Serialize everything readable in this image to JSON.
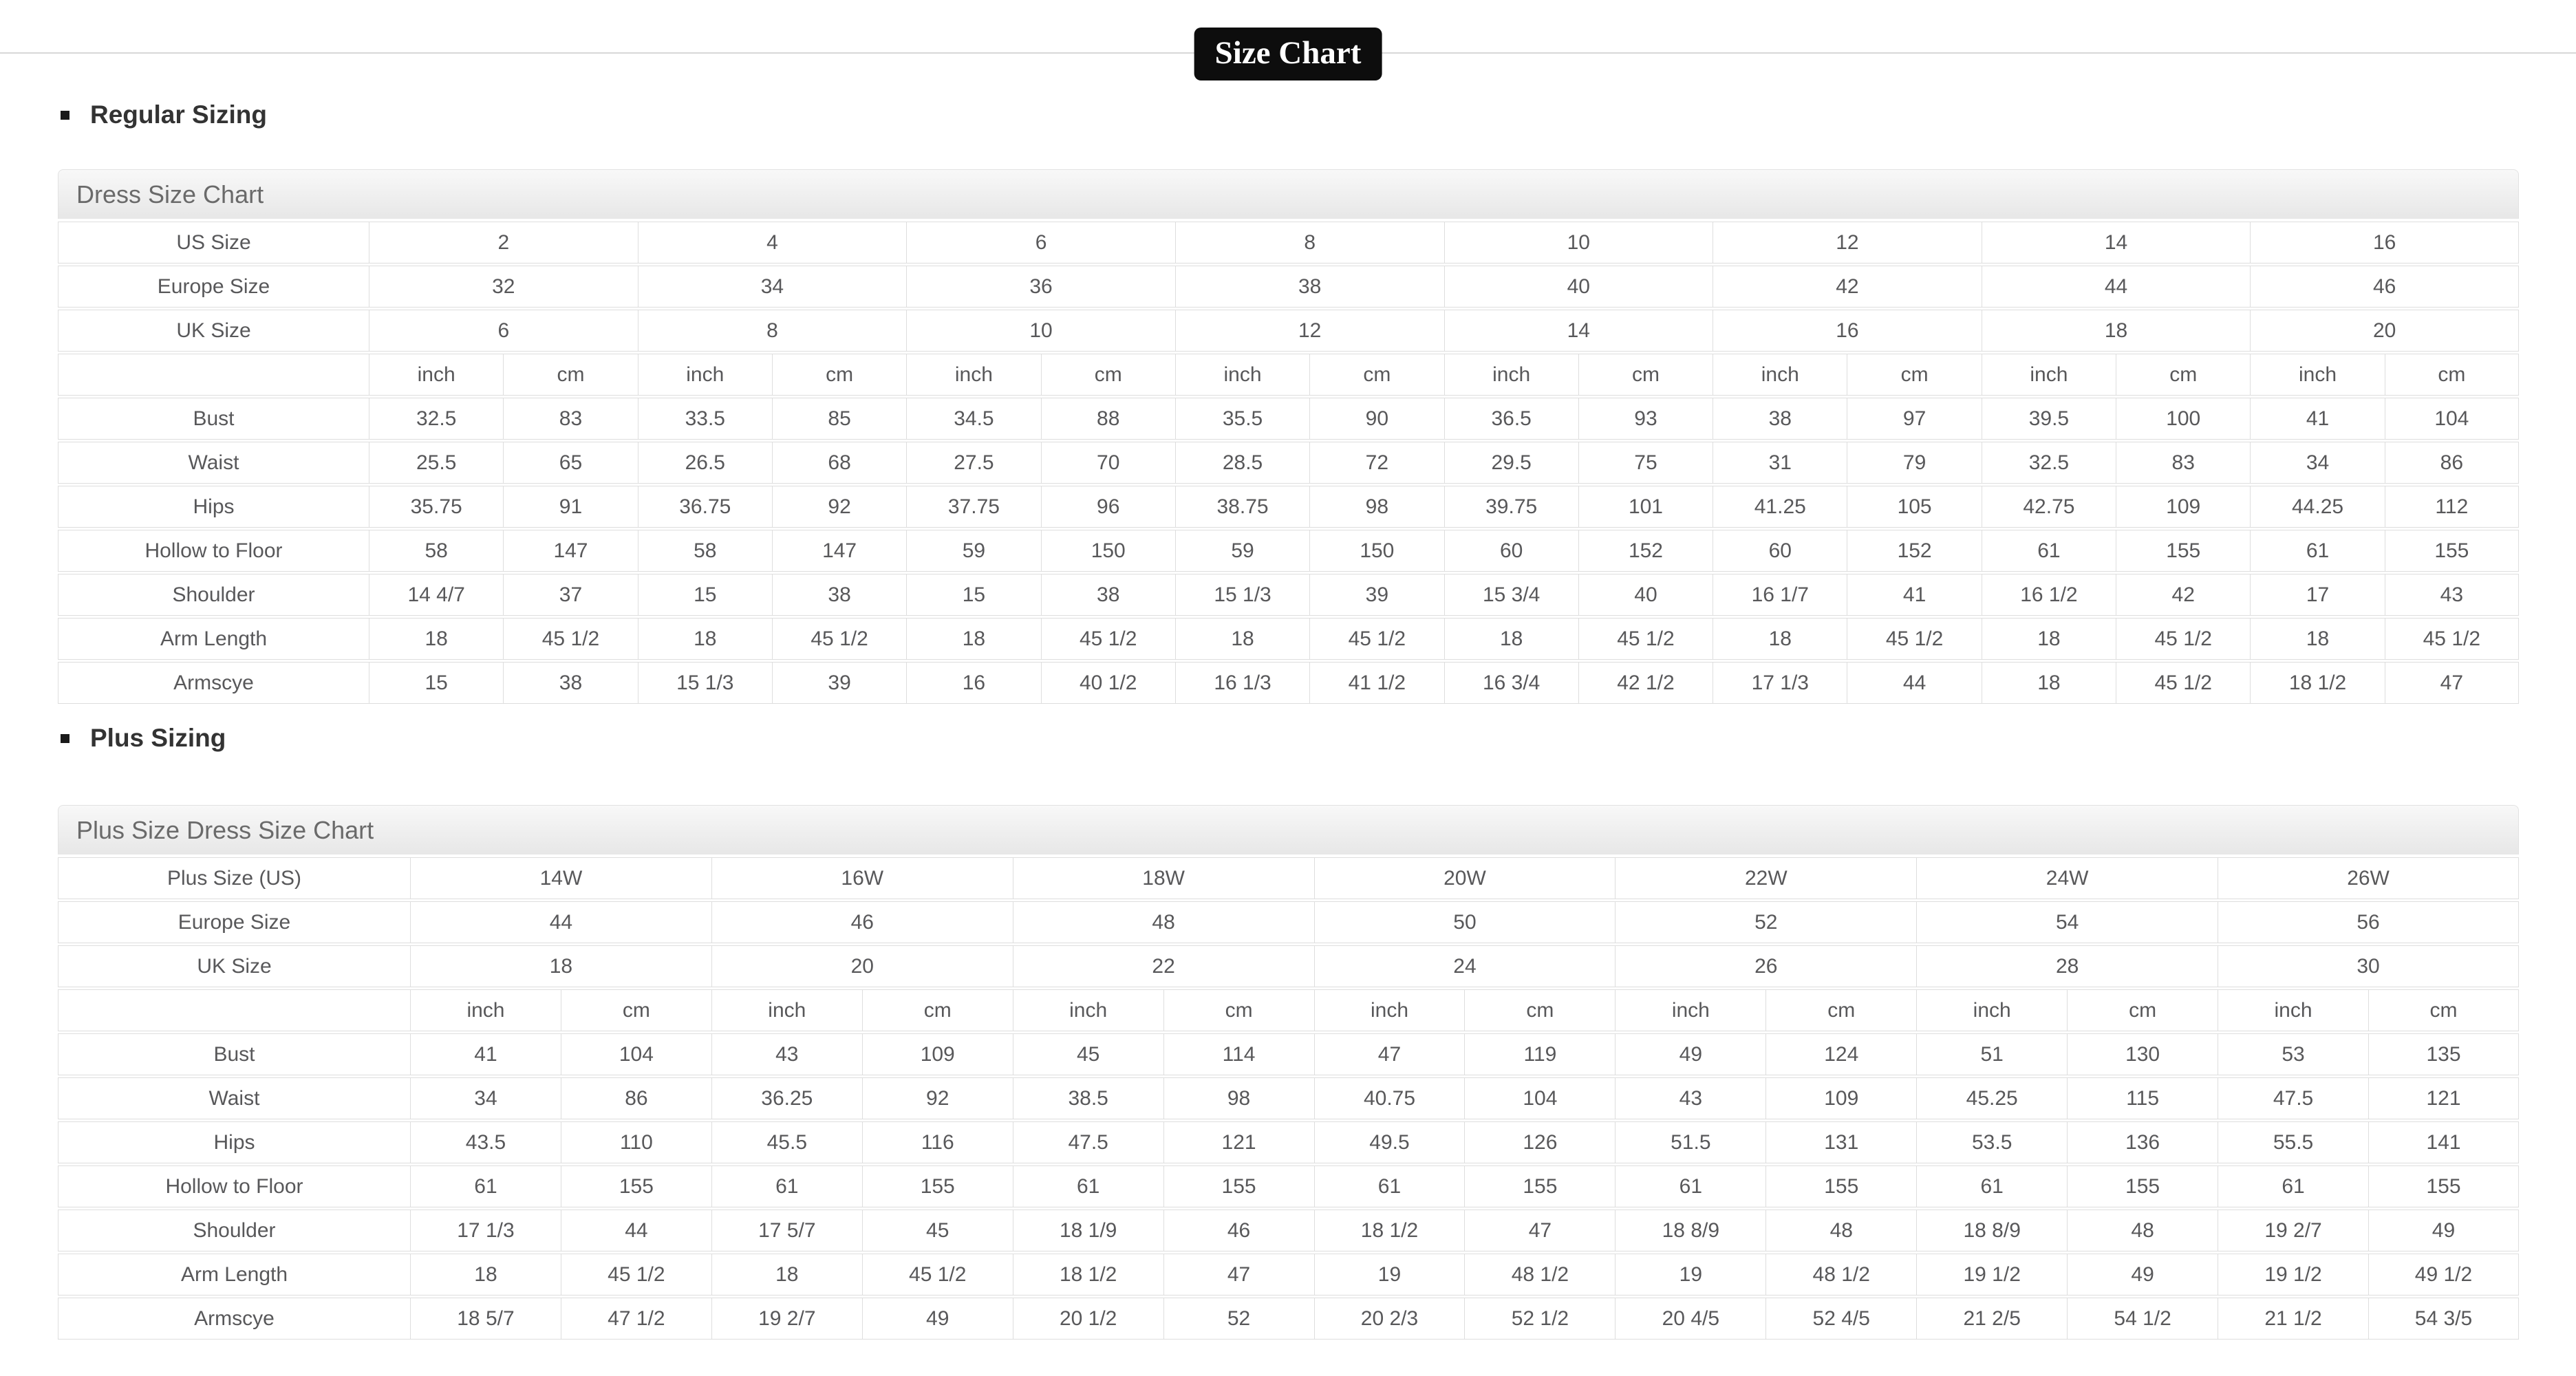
{
  "page": {
    "title": "Size Chart"
  },
  "colors": {
    "badge_bg": "#0d0d0d",
    "badge_text": "#ffffff",
    "border": "#dedede",
    "text": "#58585a"
  },
  "sections": [
    {
      "heading": "Regular Sizing",
      "table_title": "Dress Size Chart",
      "units": [
        "inch",
        "cm"
      ],
      "size_rows": [
        {
          "label": "US Size",
          "values": [
            "2",
            "4",
            "6",
            "8",
            "10",
            "12",
            "14",
            "16"
          ]
        },
        {
          "label": "Europe Size",
          "values": [
            "32",
            "34",
            "36",
            "38",
            "40",
            "42",
            "44",
            "46"
          ]
        },
        {
          "label": "UK Size",
          "values": [
            "6",
            "8",
            "10",
            "12",
            "14",
            "16",
            "18",
            "20"
          ]
        }
      ],
      "measure_rows": [
        {
          "label": "Bust",
          "values": [
            "32.5",
            "83",
            "33.5",
            "85",
            "34.5",
            "88",
            "35.5",
            "90",
            "36.5",
            "93",
            "38",
            "97",
            "39.5",
            "100",
            "41",
            "104"
          ]
        },
        {
          "label": "Waist",
          "values": [
            "25.5",
            "65",
            "26.5",
            "68",
            "27.5",
            "70",
            "28.5",
            "72",
            "29.5",
            "75",
            "31",
            "79",
            "32.5",
            "83",
            "34",
            "86"
          ]
        },
        {
          "label": "Hips",
          "values": [
            "35.75",
            "91",
            "36.75",
            "92",
            "37.75",
            "96",
            "38.75",
            "98",
            "39.75",
            "101",
            "41.25",
            "105",
            "42.75",
            "109",
            "44.25",
            "112"
          ]
        },
        {
          "label": "Hollow to Floor",
          "values": [
            "58",
            "147",
            "58",
            "147",
            "59",
            "150",
            "59",
            "150",
            "60",
            "152",
            "60",
            "152",
            "61",
            "155",
            "61",
            "155"
          ]
        },
        {
          "label": "Shoulder",
          "values": [
            "14 4/7",
            "37",
            "15",
            "38",
            "15",
            "38",
            "15 1/3",
            "39",
            "15 3/4",
            "40",
            "16 1/7",
            "41",
            "16 1/2",
            "42",
            "17",
            "43"
          ]
        },
        {
          "label": "Arm Length",
          "values": [
            "18",
            "45 1/2",
            "18",
            "45 1/2",
            "18",
            "45 1/2",
            "18",
            "45 1/2",
            "18",
            "45 1/2",
            "18",
            "45 1/2",
            "18",
            "45 1/2",
            "18",
            "45 1/2"
          ]
        },
        {
          "label": "Armscye",
          "values": [
            "15",
            "38",
            "15 1/3",
            "39",
            "16",
            "40 1/2",
            "16 1/3",
            "41 1/2",
            "16 3/4",
            "42 1/2",
            "17 1/3",
            "44",
            "18",
            "45 1/2",
            "18 1/2",
            "47"
          ]
        }
      ]
    },
    {
      "heading": "Plus Sizing",
      "table_title": "Plus Size Dress Size Chart",
      "units": [
        "inch",
        "cm"
      ],
      "size_rows": [
        {
          "label": "Plus Size (US)",
          "values": [
            "14W",
            "16W",
            "18W",
            "20W",
            "22W",
            "24W",
            "26W"
          ]
        },
        {
          "label": "Europe Size",
          "values": [
            "44",
            "46",
            "48",
            "50",
            "52",
            "54",
            "56"
          ]
        },
        {
          "label": "UK Size",
          "values": [
            "18",
            "20",
            "22",
            "24",
            "26",
            "28",
            "30"
          ]
        }
      ],
      "measure_rows": [
        {
          "label": "Bust",
          "values": [
            "41",
            "104",
            "43",
            "109",
            "45",
            "114",
            "47",
            "119",
            "49",
            "124",
            "51",
            "130",
            "53",
            "135"
          ]
        },
        {
          "label": "Waist",
          "values": [
            "34",
            "86",
            "36.25",
            "92",
            "38.5",
            "98",
            "40.75",
            "104",
            "43",
            "109",
            "45.25",
            "115",
            "47.5",
            "121"
          ]
        },
        {
          "label": "Hips",
          "values": [
            "43.5",
            "110",
            "45.5",
            "116",
            "47.5",
            "121",
            "49.5",
            "126",
            "51.5",
            "131",
            "53.5",
            "136",
            "55.5",
            "141"
          ]
        },
        {
          "label": "Hollow to Floor",
          "values": [
            "61",
            "155",
            "61",
            "155",
            "61",
            "155",
            "61",
            "155",
            "61",
            "155",
            "61",
            "155",
            "61",
            "155"
          ]
        },
        {
          "label": "Shoulder",
          "values": [
            "17 1/3",
            "44",
            "17 5/7",
            "45",
            "18 1/9",
            "46",
            "18 1/2",
            "47",
            "18 8/9",
            "48",
            "18 8/9",
            "48",
            "19 2/7",
            "49"
          ]
        },
        {
          "label": "Arm Length",
          "values": [
            "18",
            "45 1/2",
            "18",
            "45 1/2",
            "18 1/2",
            "47",
            "19",
            "48 1/2",
            "19",
            "48 1/2",
            "19 1/2",
            "49",
            "19 1/2",
            "49 1/2"
          ]
        },
        {
          "label": "Armscye",
          "values": [
            "18 5/7",
            "47 1/2",
            "19 2/7",
            "49",
            "20 1/2",
            "52",
            "20 2/3",
            "52 1/2",
            "20 4/5",
            "52 4/5",
            "21 2/5",
            "54 1/2",
            "21 1/2",
            "54 3/5"
          ]
        }
      ]
    }
  ]
}
